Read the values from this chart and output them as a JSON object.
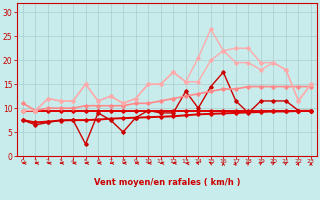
{
  "x": [
    0,
    1,
    2,
    3,
    4,
    5,
    6,
    7,
    8,
    9,
    10,
    11,
    12,
    13,
    14,
    15,
    16,
    17,
    18,
    19,
    20,
    21,
    22,
    23
  ],
  "series": [
    {
      "name": "trend_bottom_dark",
      "color": "#dd0000",
      "lw": 1.4,
      "marker": "D",
      "ms": 1.8,
      "y": [
        7.5,
        7.0,
        7.2,
        7.4,
        7.5,
        7.5,
        7.6,
        7.8,
        7.9,
        8.0,
        8.1,
        8.2,
        8.3,
        8.5,
        8.7,
        8.8,
        8.9,
        9.0,
        9.1,
        9.2,
        9.3,
        9.3,
        9.4,
        9.4
      ]
    },
    {
      "name": "volatile_dark",
      "color": "#cc0000",
      "lw": 1.0,
      "marker": "D",
      "ms": 1.8,
      "y": [
        7.5,
        6.5,
        7.0,
        7.5,
        7.5,
        2.5,
        9.0,
        7.5,
        5.0,
        8.0,
        9.5,
        9.0,
        9.0,
        13.5,
        10.0,
        14.5,
        17.5,
        11.5,
        9.0,
        11.5,
        11.5,
        11.5,
        9.5,
        9.5
      ]
    },
    {
      "name": "trend_mid_dark",
      "color": "#dd0000",
      "lw": 1.4,
      "marker": "D",
      "ms": 1.8,
      "y": [
        9.5,
        9.5,
        9.5,
        9.5,
        9.5,
        9.5,
        9.5,
        9.5,
        9.5,
        9.5,
        9.5,
        9.5,
        9.5,
        9.5,
        9.5,
        9.5,
        9.5,
        9.5,
        9.5,
        9.5,
        9.5,
        9.5,
        9.5,
        9.5
      ]
    },
    {
      "name": "trend_mid2_medium",
      "color": "#ff8888",
      "lw": 1.2,
      "marker": "D",
      "ms": 1.8,
      "y": [
        11.0,
        9.5,
        10.0,
        10.0,
        10.0,
        10.5,
        10.5,
        10.5,
        10.5,
        11.0,
        11.0,
        11.5,
        12.0,
        12.5,
        13.0,
        13.5,
        14.0,
        14.0,
        14.5,
        14.5,
        14.5,
        14.5,
        14.5,
        14.5
      ]
    },
    {
      "name": "upper_volatile_light",
      "color": "#ffaaaa",
      "lw": 1.0,
      "marker": "D",
      "ms": 1.8,
      "y": [
        9.5,
        9.5,
        12.0,
        11.5,
        11.5,
        15.0,
        11.5,
        12.5,
        11.0,
        12.0,
        15.0,
        15.0,
        17.5,
        15.5,
        15.5,
        20.0,
        22.0,
        19.5,
        19.5,
        18.0,
        19.5,
        18.0,
        11.5,
        15.0
      ]
    },
    {
      "name": "upper_peak_light",
      "color": "#ffaaaa",
      "lw": 1.0,
      "marker": "D",
      "ms": 1.8,
      "y": [
        9.5,
        9.5,
        12.0,
        11.5,
        11.5,
        15.0,
        11.5,
        12.5,
        11.0,
        12.0,
        15.0,
        15.0,
        17.5,
        15.5,
        20.5,
        26.5,
        22.0,
        22.5,
        22.5,
        19.5,
        19.5,
        18.0,
        11.5,
        15.0
      ]
    }
  ],
  "xlabel": "Vent moyen/en rafales ( km/h )",
  "xlim": [
    -0.5,
    23.5
  ],
  "ylim": [
    0,
    32
  ],
  "yticks": [
    0,
    5,
    10,
    15,
    20,
    25,
    30
  ],
  "xticks": [
    0,
    1,
    2,
    3,
    4,
    5,
    6,
    7,
    8,
    9,
    10,
    11,
    12,
    13,
    14,
    15,
    16,
    17,
    18,
    19,
    20,
    21,
    22,
    23
  ],
  "bg_color": "#c8ecec",
  "grid_color": "#aacccc",
  "axis_color": "#cc0000",
  "label_color": "#cc0000",
  "tick_color": "#cc0000",
  "arrow_color": "#cc0000",
  "arrow_directions": [
    180,
    180,
    180,
    180,
    180,
    180,
    180,
    180,
    180,
    180,
    180,
    180,
    180,
    160,
    150,
    120,
    90,
    80,
    70,
    60,
    60,
    60,
    80,
    90
  ]
}
